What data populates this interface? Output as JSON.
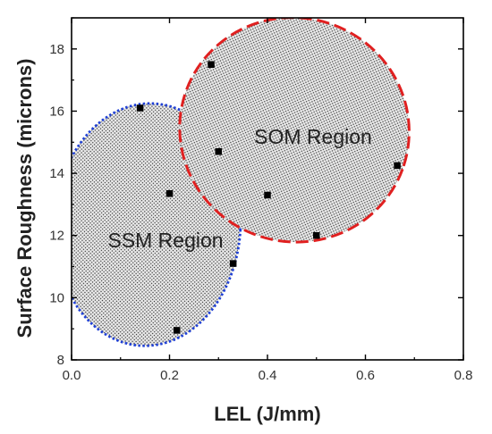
{
  "chart_data": {
    "type": "scatter",
    "xlabel": "LEL (J/mm)",
    "ylabel": "Surface Roughness (microns)",
    "xlim": [
      0.0,
      0.8
    ],
    "ylim": [
      8,
      19
    ],
    "xticks": [
      "0.0",
      "0.2",
      "0.4",
      "0.6",
      "0.8"
    ],
    "yticks": [
      "8",
      "10",
      "12",
      "14",
      "16",
      "18"
    ],
    "grid": false,
    "marker": "square",
    "marker_color": "#000000",
    "points": [
      {
        "x": 0.14,
        "y": 16.1
      },
      {
        "x": 0.2,
        "y": 13.35
      },
      {
        "x": 0.215,
        "y": 8.95
      },
      {
        "x": 0.33,
        "y": 11.1
      },
      {
        "x": 0.285,
        "y": 17.5
      },
      {
        "x": 0.3,
        "y": 14.7
      },
      {
        "x": 0.4,
        "y": 13.3
      },
      {
        "x": 0.5,
        "y": 12.0
      },
      {
        "x": 0.665,
        "y": 14.25
      }
    ],
    "regions": [
      {
        "label": "SSM Region",
        "border_color": "#1e3fd6",
        "border_style": "dotted",
        "fill": "dot-hatch",
        "center": {
          "x": 0.155,
          "y": 12.35
        },
        "radius": {
          "x": 0.19,
          "y": 3.9
        },
        "rotation_deg": 3
      },
      {
        "label": "SOM Region",
        "border_color": "#e02020",
        "border_style": "dashed",
        "fill": "dot-hatch",
        "center": {
          "x": 0.455,
          "y": 15.4
        },
        "radius": {
          "x": 0.235,
          "y": 3.6
        },
        "rotation_deg": 20
      }
    ]
  }
}
